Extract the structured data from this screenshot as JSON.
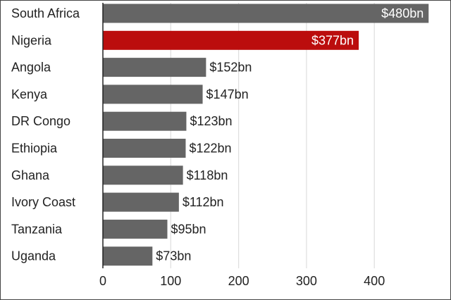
{
  "chart_data": {
    "type": "bar",
    "orientation": "horizontal",
    "title": "",
    "xlabel": "",
    "ylabel": "",
    "categories": [
      "South Africa",
      "Nigeria",
      "Angola",
      "Kenya",
      "DR Congo",
      "Ethiopia",
      "Ghana",
      "Ivory Coast",
      "Tanzania",
      "Uganda"
    ],
    "values": [
      480,
      377,
      152,
      147,
      123,
      122,
      118,
      112,
      95,
      73
    ],
    "value_labels": [
      "$480bn",
      "$377bn",
      "$152bn",
      "$147bn",
      "$123bn",
      "$122bn",
      "$118bn",
      "$112bn",
      "$95bn",
      "$73bn"
    ],
    "highlight_category": "Nigeria",
    "xlim": [
      0,
      480
    ],
    "xticks": [
      0,
      100,
      200,
      300,
      400
    ],
    "grid": "vertical",
    "colors": {
      "bar": "#656565",
      "highlight": "#bb0d0d",
      "grid": "#dedede",
      "axis": "#222222",
      "label_inside": "#ffffff",
      "label_outside": "#222222"
    }
  }
}
